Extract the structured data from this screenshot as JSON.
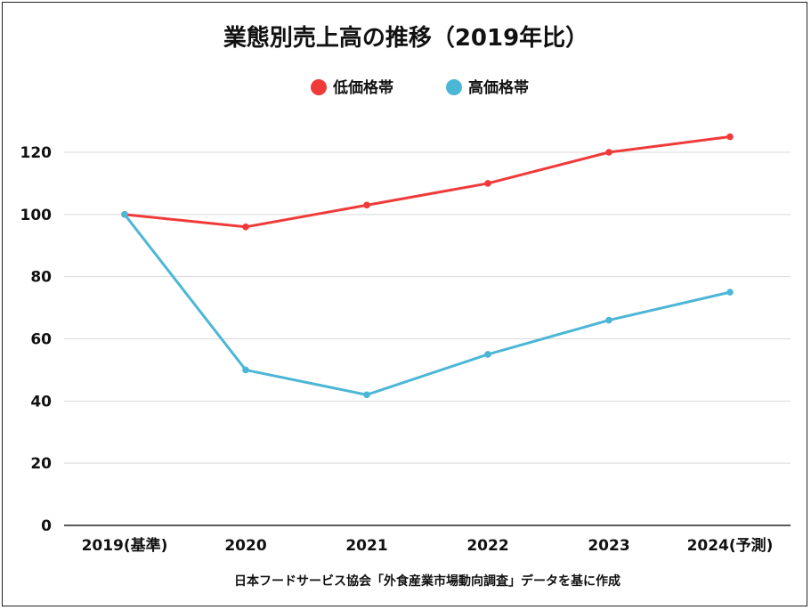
{
  "chart_data": {
    "type": "line",
    "title": "業態別売上高の推移（2019年比）",
    "categories": [
      "2019(基準)",
      "2020",
      "2021",
      "2022",
      "2023",
      "2024(予測)"
    ],
    "series": [
      {
        "name": "低価格帯",
        "color": "#f03a3a",
        "values": [
          100,
          96,
          103,
          110,
          120,
          125
        ]
      },
      {
        "name": "高価格帯",
        "color": "#4cb6d6",
        "values": [
          100,
          50,
          42,
          55,
          66,
          75
        ]
      }
    ],
    "yticks": [
      0,
      20,
      40,
      60,
      80,
      100,
      120
    ],
    "ylim": [
      0,
      120
    ],
    "grid": true,
    "legend": "top-center",
    "source": "日本フードサービス協会「外食産業市場動向調査」データを基に作成"
  }
}
